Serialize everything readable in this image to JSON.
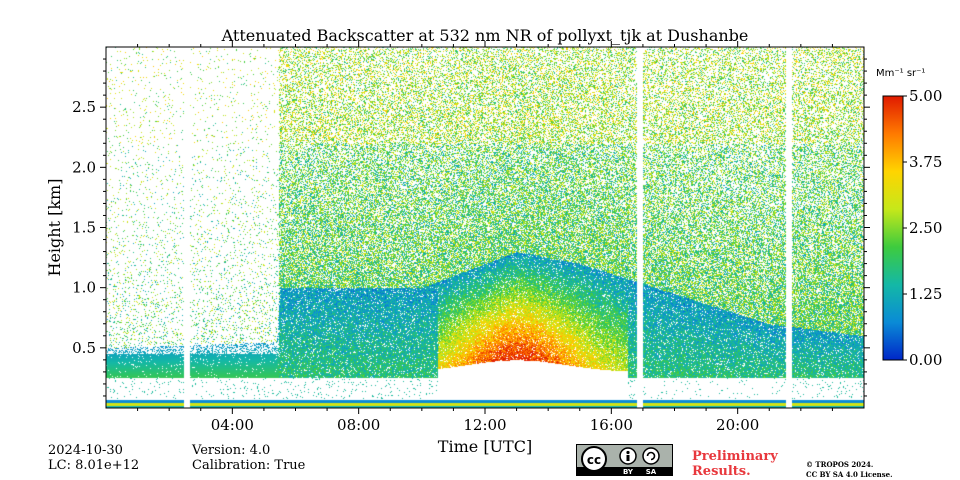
{
  "chart_data": {
    "type": "heatmap",
    "title": "Attenuated Backscatter at 532 nm NR of pollyxt_tjk at Dushanbe",
    "xlabel": "Time [UTC]",
    "ylabel": "Height [km]",
    "xlim_hours": [
      0,
      24
    ],
    "ylim_km": [
      0,
      3.0
    ],
    "x_ticks": [
      {
        "value": 4,
        "label": "04:00"
      },
      {
        "value": 8,
        "label": "08:00"
      },
      {
        "value": 12,
        "label": "12:00"
      },
      {
        "value": 16,
        "label": "16:00"
      },
      {
        "value": 20,
        "label": "20:00"
      }
    ],
    "y_ticks": [
      {
        "value": 0.5,
        "label": "0.5"
      },
      {
        "value": 1.0,
        "label": "1.0"
      },
      {
        "value": 1.5,
        "label": "1.5"
      },
      {
        "value": 2.0,
        "label": "2.0"
      },
      {
        "value": 2.5,
        "label": "2.5"
      }
    ],
    "colorbar": {
      "unit_label": "Mm⁻¹ sr⁻¹",
      "range": [
        0.0,
        5.0
      ],
      "ticks": [
        "0.00",
        "1.25",
        "2.50",
        "3.75",
        "5.00"
      ],
      "colormap": [
        "#0026c8",
        "#0a8bd6",
        "#14b8a6",
        "#3ecb3e",
        "#c6e81a",
        "#ffd400",
        "#ff7a00",
        "#e01a00"
      ]
    },
    "data_gaps_hours": [
      2.55,
      16.9,
      21.6
    ],
    "layer_structure": {
      "aerosol_top_km_by_hour": [
        [
          0,
          0.5
        ],
        [
          5.4,
          0.55
        ],
        [
          5.5,
          1.0
        ],
        [
          10,
          1.0
        ],
        [
          13,
          1.3
        ],
        [
          15,
          1.2
        ],
        [
          18,
          0.95
        ],
        [
          21,
          0.7
        ],
        [
          24,
          0.6
        ]
      ],
      "strong_layer_start_hour": 10.5,
      "strong_layer_end_hour": 16.5
    }
  },
  "footer": {
    "date": "2024-10-30",
    "lc": "LC: 8.01e+12",
    "version": "Version: 4.0",
    "calibration": "Calibration: True",
    "license_badge_icons": [
      "cc-icon",
      "by-icon",
      "sa-icon"
    ],
    "license_badge_labels": [
      "BY",
      "SA"
    ],
    "preliminary_line1": "Preliminary",
    "preliminary_line2": "Results.",
    "copyright_line1": "© TROPOS 2024.",
    "copyright_line2": "CC BY SA 4.0 License."
  }
}
